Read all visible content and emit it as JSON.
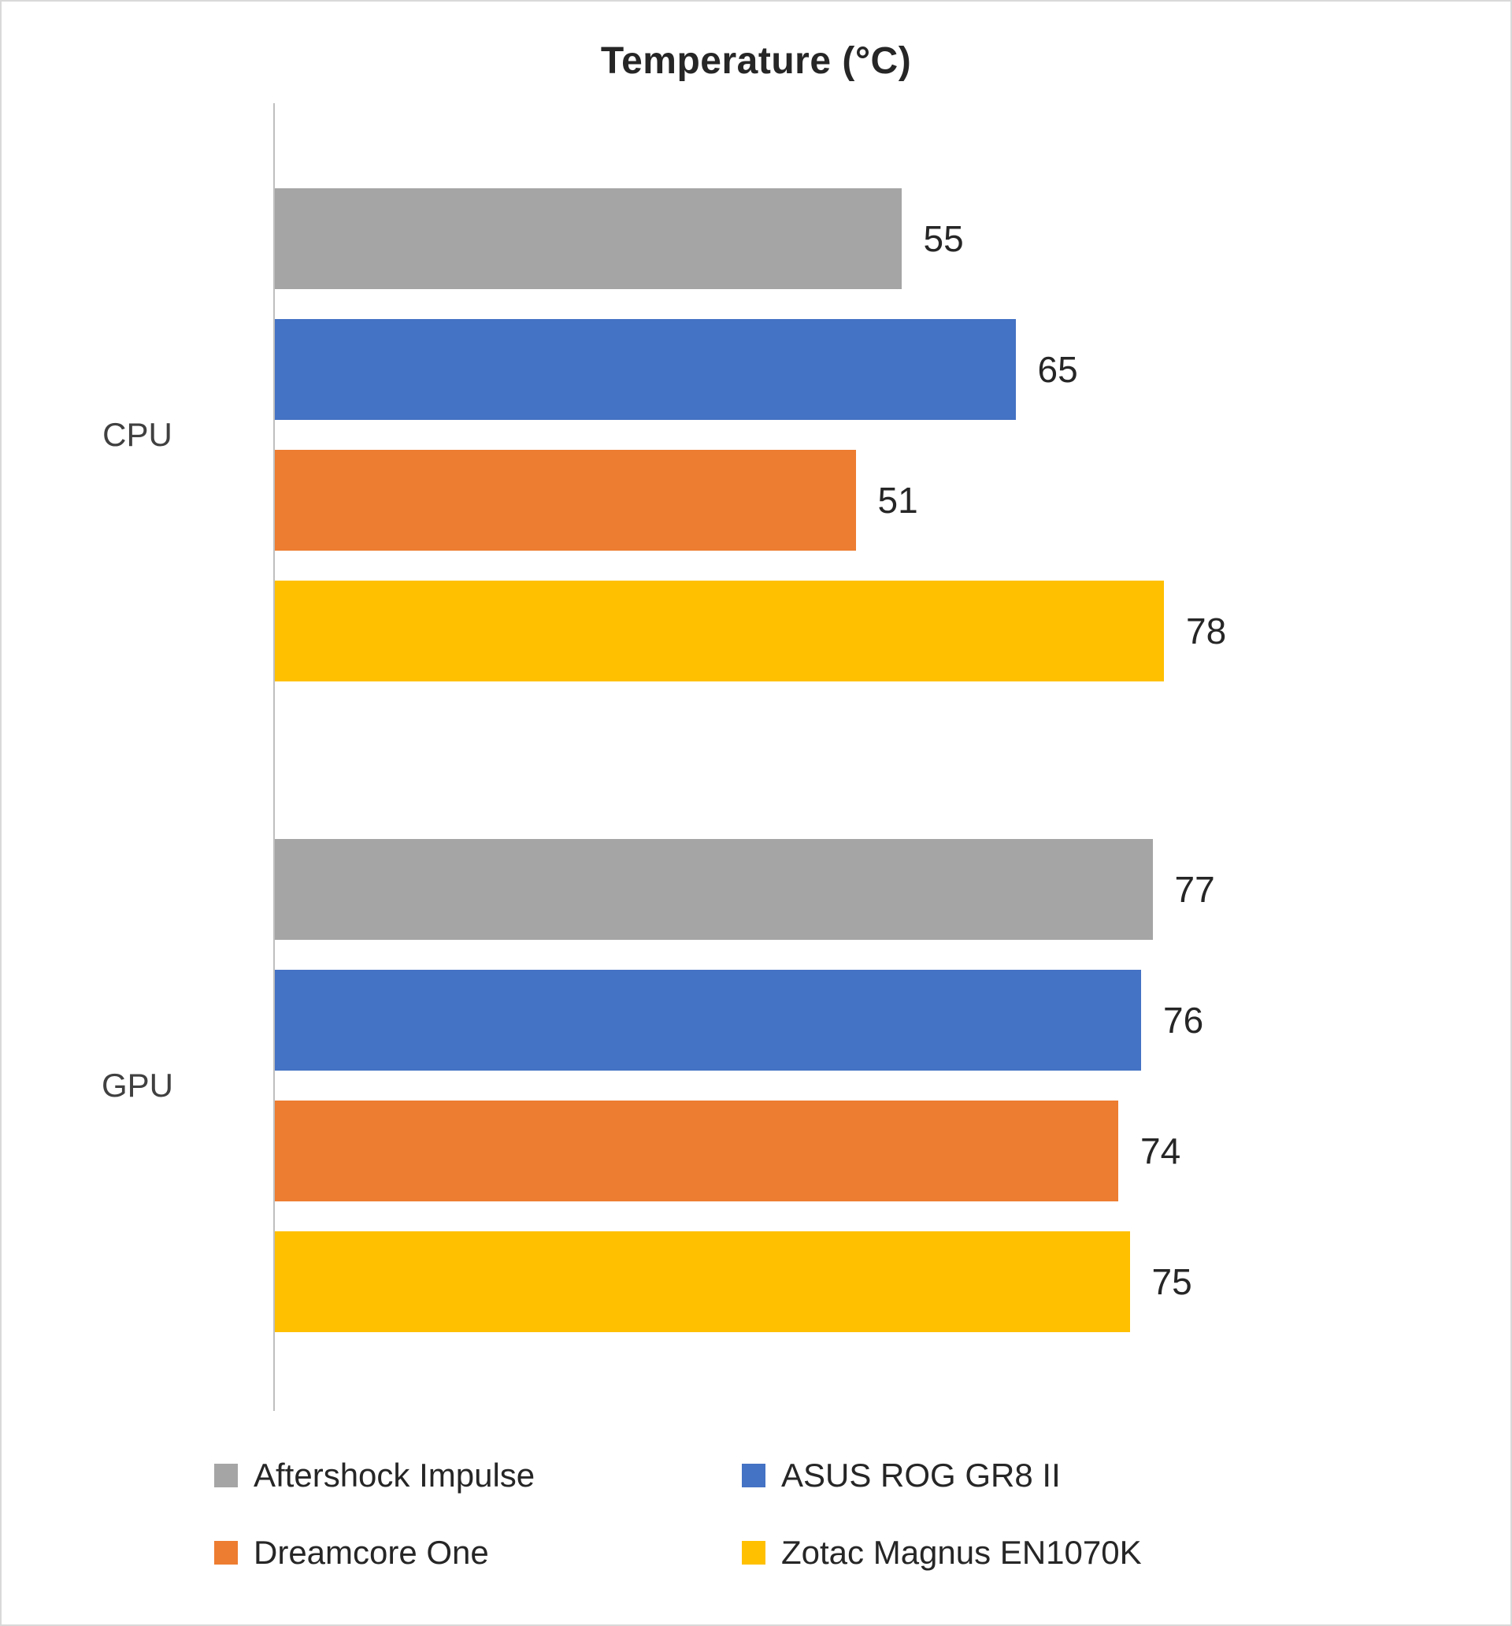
{
  "chart_data": {
    "type": "bar",
    "orientation": "horizontal",
    "title": "Temperature (°C)",
    "categories": [
      "CPU",
      "GPU"
    ],
    "series": [
      {
        "name": "Aftershock Impulse",
        "color": "#a5a5a5",
        "values": [
          55,
          77
        ]
      },
      {
        "name": "ASUS ROG GR8 II",
        "color": "#4472c4",
        "values": [
          65,
          76
        ]
      },
      {
        "name": "Dreamcore One",
        "color": "#ed7d31",
        "values": [
          51,
          74
        ]
      },
      {
        "name": "Zotac Magnus EN1070K",
        "color": "#ffc000",
        "values": [
          78,
          75
        ]
      }
    ],
    "value_labels_shown": true,
    "axis_labels_shown": false,
    "grid": false,
    "legend_position": "bottom",
    "colors": {
      "axis_line": "#bfbfbf",
      "text": "#262626"
    }
  }
}
